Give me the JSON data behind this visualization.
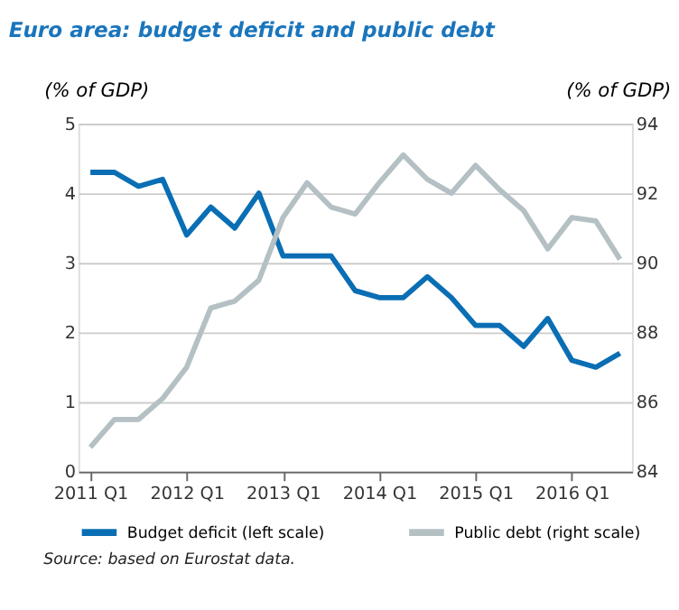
{
  "chart_data": {
    "type": "line",
    "title": "Euro area: budget deficit and public debt",
    "ylabel": "(% of GDP)",
    "y2label": "(% of GDP)",
    "categories": [
      "2011 Q1",
      null,
      null,
      null,
      "2012 Q1",
      null,
      null,
      null,
      "2013 Q1",
      null,
      null,
      null,
      "2014 Q1",
      null,
      null,
      null,
      "2015 Q1",
      null,
      null,
      null,
      "2016 Q1",
      null,
      null
    ],
    "series": [
      {
        "name": "Budget deficit (left scale)",
        "color": "#0a6eb4",
        "values": [
          4.3,
          4.3,
          4.1,
          4.2,
          3.4,
          3.8,
          3.5,
          4.0,
          3.1,
          3.1,
          3.1,
          2.6,
          2.5,
          2.5,
          2.8,
          2.5,
          2.1,
          2.1,
          1.8,
          2.2,
          1.6,
          1.5,
          1.7
        ]
      },
      {
        "name": "Public debt (right scale)",
        "color": "#b4c0c4",
        "axis": "y2",
        "values": [
          84.7,
          85.5,
          85.5,
          86.1,
          87.0,
          88.7,
          88.9,
          89.5,
          91.3,
          92.3,
          91.6,
          91.4,
          92.3,
          93.1,
          92.4,
          92.0,
          92.8,
          92.1,
          91.5,
          90.4,
          91.3,
          91.2,
          90.1
        ]
      }
    ],
    "ylim": [
      0,
      5
    ],
    "yticks": [
      0,
      1,
      2,
      3,
      4,
      5
    ],
    "y2lim": [
      84,
      94
    ],
    "y2ticks": [
      84,
      86,
      88,
      90,
      92,
      94
    ],
    "grid": "y",
    "legend": "bottom",
    "line_style": "solid",
    "marker": "none",
    "annotations": [
      "Source: based on Eurostat data."
    ]
  }
}
